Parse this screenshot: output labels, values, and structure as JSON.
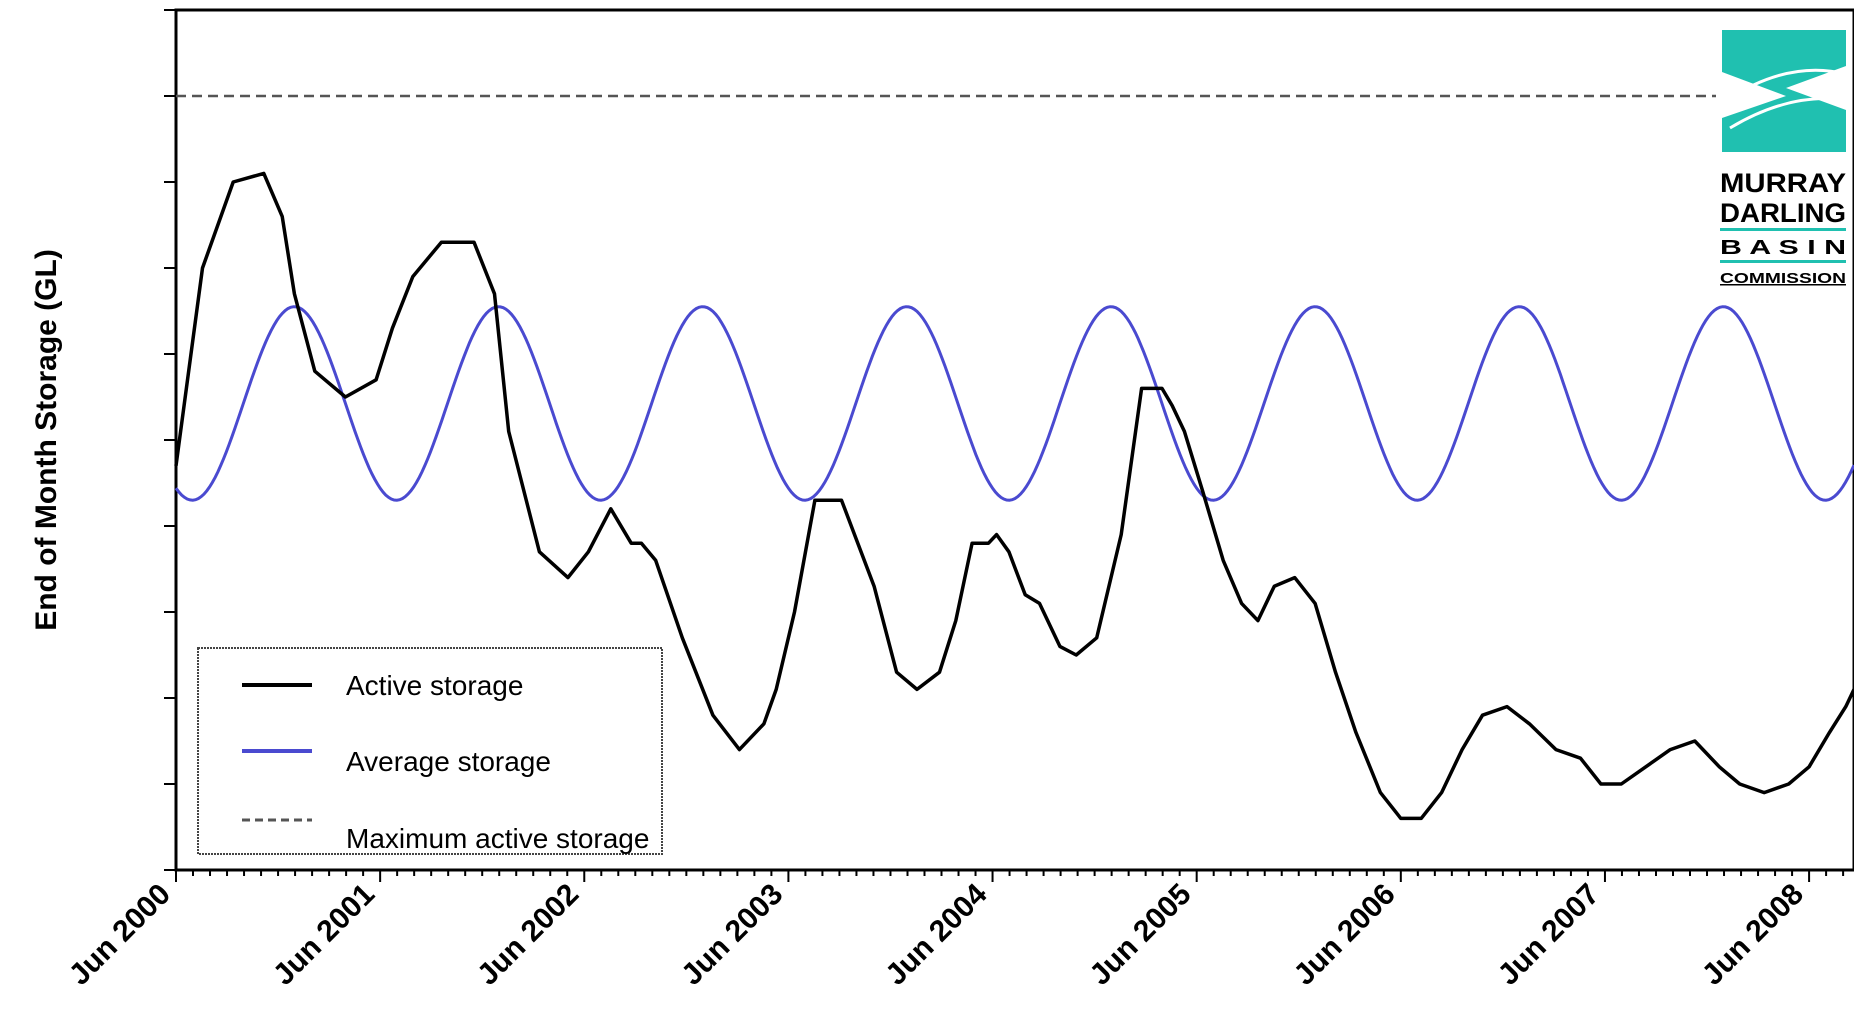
{
  "chart_data": {
    "type": "line",
    "ylabel": "End of Month Storage (GL)",
    "xlabel": "",
    "title": "",
    "x_ticks": [
      "Jun 2000",
      "Jun 2001",
      "Jun 2002",
      "Jun 2003",
      "Jun 2004",
      "Jun 2005",
      "Jun 2006",
      "Jun 2007",
      "Jun 2008"
    ],
    "x_range_years": [
      2000.42,
      2008.64
    ],
    "y_range_relative": [
      0,
      1
    ],
    "grid": false,
    "legend_position": "bottom-left",
    "y_tick_labels_shown": false,
    "series": [
      {
        "name": "Active storage",
        "color": "#000000",
        "style": "solid",
        "x": [
          2000.42,
          2000.55,
          2000.7,
          2000.85,
          2000.94,
          2001.0,
          2001.1,
          2001.25,
          2001.4,
          2001.48,
          2001.58,
          2001.72,
          2001.88,
          2001.98,
          2002.05,
          2002.2,
          2002.34,
          2002.44,
          2002.55,
          2002.65,
          2002.7,
          2002.77,
          2002.9,
          2003.05,
          2003.18,
          2003.3,
          2003.36,
          2003.45,
          2003.55,
          2003.68,
          2003.76,
          2003.84,
          2003.95,
          2004.05,
          2004.16,
          2004.24,
          2004.32,
          2004.4,
          2004.44,
          2004.5,
          2004.58,
          2004.65,
          2004.75,
          2004.83,
          2004.93,
          2005.05,
          2005.15,
          2005.25,
          2005.3,
          2005.36,
          2005.45,
          2005.55,
          2005.64,
          2005.72,
          2005.8,
          2005.9,
          2006.0,
          2006.1,
          2006.2,
          2006.32,
          2006.42,
          2006.52,
          2006.62,
          2006.72,
          2006.82,
          2006.94,
          2007.05,
          2007.18,
          2007.3,
          2007.4,
          2007.5,
          2007.62,
          2007.74,
          2007.86,
          2007.98,
          2008.08,
          2008.2,
          2008.32,
          2008.42,
          2008.52,
          2008.6,
          2008.64
        ],
        "y": [
          0.47,
          0.7,
          0.8,
          0.81,
          0.76,
          0.67,
          0.58,
          0.55,
          0.57,
          0.63,
          0.69,
          0.73,
          0.73,
          0.67,
          0.51,
          0.37,
          0.34,
          0.37,
          0.42,
          0.38,
          0.38,
          0.36,
          0.27,
          0.18,
          0.14,
          0.17,
          0.21,
          0.3,
          0.43,
          0.43,
          0.38,
          0.33,
          0.23,
          0.21,
          0.23,
          0.29,
          0.38,
          0.38,
          0.39,
          0.37,
          0.32,
          0.31,
          0.26,
          0.25,
          0.27,
          0.39,
          0.56,
          0.56,
          0.54,
          0.51,
          0.44,
          0.36,
          0.31,
          0.29,
          0.33,
          0.34,
          0.31,
          0.23,
          0.16,
          0.09,
          0.06,
          0.06,
          0.09,
          0.14,
          0.18,
          0.19,
          0.17,
          0.14,
          0.13,
          0.1,
          0.1,
          0.12,
          0.14,
          0.15,
          0.12,
          0.1,
          0.09,
          0.1,
          0.12,
          0.16,
          0.19,
          0.21
        ],
        "y_note_free": true
      },
      {
        "name": "Average storage",
        "color": "#4a4ad0",
        "style": "solid",
        "periodic": true,
        "min": 0.43,
        "max": 0.655,
        "period_years": 1.0,
        "peak_year_fraction": 0.0
      },
      {
        "name": "Maximum active storage",
        "color": "#555555",
        "style": "dashed",
        "constant": 0.9
      }
    ],
    "legend": [
      {
        "label": "Active storage",
        "color": "#000000",
        "style": "solid"
      },
      {
        "label": "Average storage",
        "color": "#4a4ad0",
        "style": "solid"
      },
      {
        "label": "Maximum active storage",
        "color": "#555555",
        "style": "dashed"
      }
    ]
  },
  "logo": {
    "line1": "MURRAY",
    "line2": "DARLING",
    "line3": "B A S I N",
    "line4": "COMMISSION",
    "color": "#20c0b0"
  }
}
